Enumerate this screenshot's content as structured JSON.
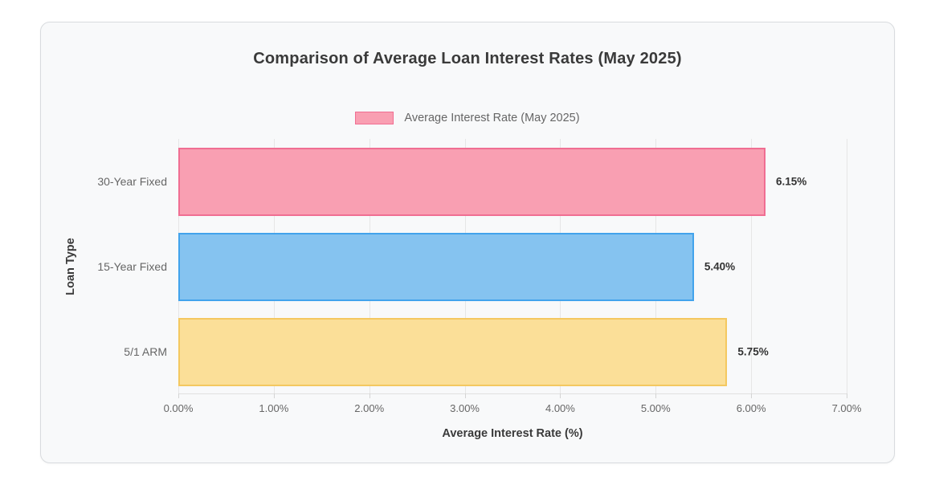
{
  "chart_data": {
    "type": "bar",
    "orientation": "horizontal",
    "title": "Comparison of Average Loan Interest Rates (May 2025)",
    "legend": {
      "label": "Average Interest Rate (May 2025)",
      "swatch_fill": "#f99fb2",
      "swatch_border": "#f06e92",
      "position": "top"
    },
    "categories": [
      "30-Year Fixed",
      "15-Year Fixed",
      "5/1 ARM"
    ],
    "values": [
      6.15,
      5.4,
      5.75
    ],
    "value_labels": [
      "6.15%",
      "5.40%",
      "5.75%"
    ],
    "bar_colors": [
      {
        "fill": "#f99fb2",
        "border": "#f06e92"
      },
      {
        "fill": "#85c3f0",
        "border": "#42a3ec"
      },
      {
        "fill": "#fbdf98",
        "border": "#f4c860"
      }
    ],
    "xlabel": "Average Interest Rate (%)",
    "ylabel": "Loan Type",
    "xlim": [
      0,
      7
    ],
    "x_ticks": [
      "0.00%",
      "1.00%",
      "2.00%",
      "3.00%",
      "4.00%",
      "5.00%",
      "6.00%",
      "7.00%"
    ],
    "x_tick_values": [
      0,
      1,
      2,
      3,
      4,
      5,
      6,
      7
    ],
    "grid": true,
    "grid_color": "#e6e6e6"
  }
}
